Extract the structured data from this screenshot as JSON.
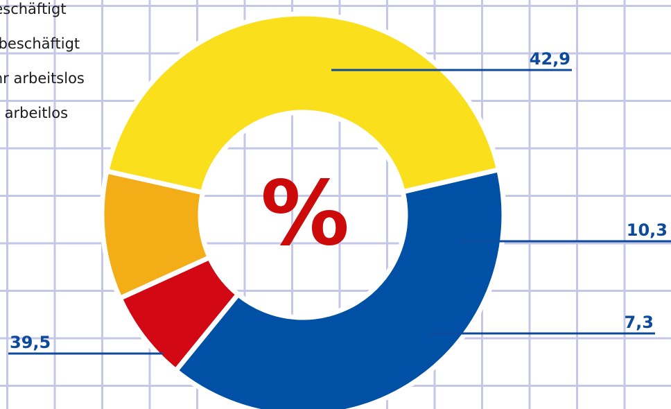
{
  "chart_data": {
    "type": "pie",
    "center_label": "%",
    "legend_entries": [
      "beschäftigt",
      "e beschäftigt",
      "ahr arbeitslos",
      "hr arbeitlos"
    ],
    "slices": [
      {
        "label": "42,9",
        "value": 42.9,
        "color": "#fae01c"
      },
      {
        "label": "10,3",
        "value": 10.3,
        "color": "#f2ad17"
      },
      {
        "label": "7,3",
        "value": 7.3,
        "color": "#d20814"
      },
      {
        "label": "39,5",
        "value": 39.5,
        "color": "#0051a5"
      }
    ],
    "label_color": "#0d4a9c",
    "center_color": "#cc0a0a"
  }
}
